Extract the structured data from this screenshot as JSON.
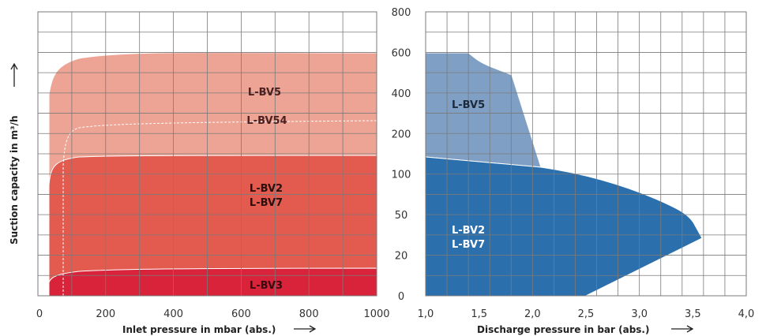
{
  "chart_data": [
    {
      "type": "area",
      "xlabel": "Inlet pressure in mbar (abs.)",
      "ylabel": "Suction capacity  in m³/h",
      "xlim": [
        0,
        1000
      ],
      "x_ticks": [
        "0",
        "200",
        "400",
        "600",
        "800",
        "1000"
      ],
      "y_ticks": [
        "0",
        "20",
        "50",
        "100",
        "200",
        "400",
        "600",
        "800"
      ],
      "y_scale": "custom-nonlinear (equally spaced ticks)",
      "grid": true,
      "series": [
        {
          "name": "L-BV5",
          "color": "#eda494",
          "points": [
            [
              27,
              0
            ],
            [
              40,
              370
            ],
            [
              55,
              540
            ],
            [
              100,
              592
            ],
            [
              200,
              602
            ],
            [
              300,
              604
            ],
            [
              1000,
              604
            ]
          ]
        },
        {
          "name": "L-BV54",
          "style": "dashed-outline",
          "points": [
            [
              65,
              0
            ],
            [
              75,
              120
            ],
            [
              85,
              260
            ],
            [
              150,
              268
            ],
            [
              300,
              270
            ],
            [
              1000,
              270
            ]
          ]
        },
        {
          "name": "L-BV2 L-BV7",
          "color": "#e35b4f",
          "points": [
            [
              25,
              0
            ],
            [
              30,
              55
            ],
            [
              45,
              120
            ],
            [
              80,
              140
            ],
            [
              200,
              145
            ],
            [
              1000,
              145
            ]
          ]
        },
        {
          "name": "L-BV3",
          "color": "#d9233a",
          "points": [
            [
              18,
              0
            ],
            [
              30,
              12
            ],
            [
              60,
              20
            ],
            [
              150,
              24
            ],
            [
              1000,
              25
            ]
          ]
        }
      ],
      "labels": {
        "bv5": "L-BV5",
        "bv54": "L-BV54",
        "bv2": "L-BV2",
        "bv7": "L-BV7",
        "bv3": "L-BV3"
      }
    },
    {
      "type": "area",
      "xlabel": "Discharge pressure in bar (abs.)",
      "xlim": [
        1.0,
        4.0
      ],
      "x_ticks": [
        "1,0",
        "1,5",
        "2,0",
        "2,5",
        "3,0",
        "3,5",
        "4,0"
      ],
      "grid": true,
      "series": [
        {
          "name": "L-BV5",
          "color": "#7fa0c4",
          "points": [
            [
              1.0,
              600
            ],
            [
              1.4,
              600
            ],
            [
              1.5,
              560
            ],
            [
              1.8,
              480
            ],
            [
              2.1,
              125
            ],
            [
              1.0,
              145
            ]
          ]
        },
        {
          "name": "L-BV2 L-BV7",
          "color": "#2c6fad",
          "points": [
            [
              1.0,
              0
            ],
            [
              1.0,
              145
            ],
            [
              2.1,
              125
            ],
            [
              2.5,
              103
            ],
            [
              3.0,
              78
            ],
            [
              3.3,
              60
            ],
            [
              3.5,
              47
            ],
            [
              3.6,
              28
            ],
            [
              2.5,
              0
            ]
          ]
        }
      ],
      "labels": {
        "bv5": "L-BV5",
        "bv2": "L-BV2",
        "bv7": "L-BV7"
      }
    }
  ],
  "colors": {
    "bv5_left": "#eda494",
    "bv2_left": "#e35b4f",
    "bv3_left": "#d9233a",
    "bv5_right": "#7fa0c4",
    "bv2_right": "#2c6fad"
  }
}
